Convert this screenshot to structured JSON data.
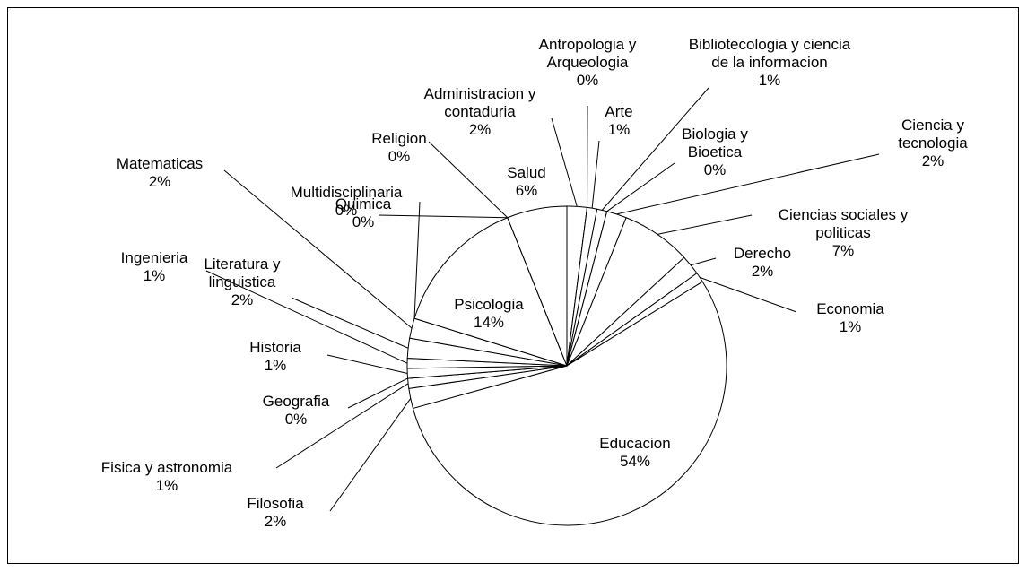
{
  "chart_data": {
    "type": "pie",
    "categories": [
      "Administracion y contaduria",
      "Antropologia y Arqueologia",
      "Arte",
      "Bibliotecologia y ciencia de la informacion",
      "Biologia y Bioetica",
      "Ciencia y tecnologia",
      "Ciencias sociales y politicas",
      "Derecho",
      "Economia",
      "Educacion",
      "Filosofia",
      "Fisica y astronomia",
      "Geografia",
      "Historia",
      "Ingenieria",
      "Literatura y linguistica",
      "Matematicas",
      "Multidisciplinaria",
      "Psicologia",
      "Quimica",
      "Religion",
      "Salud"
    ],
    "values": [
      2,
      0,
      1,
      1,
      0,
      2,
      7,
      2,
      1,
      54,
      2,
      1,
      0,
      1,
      1,
      2,
      2,
      0,
      14,
      0,
      0,
      6
    ],
    "value_labels": [
      "2%",
      "0%",
      "1%",
      "1%",
      "0%",
      "2%",
      "7%",
      "2%",
      "1%",
      "54%",
      "2%",
      "1%",
      "0%",
      "1%",
      "1%",
      "2%",
      "2%",
      "0%",
      "14%",
      "0%",
      "0%",
      "6%"
    ],
    "color": "#ffffff"
  }
}
